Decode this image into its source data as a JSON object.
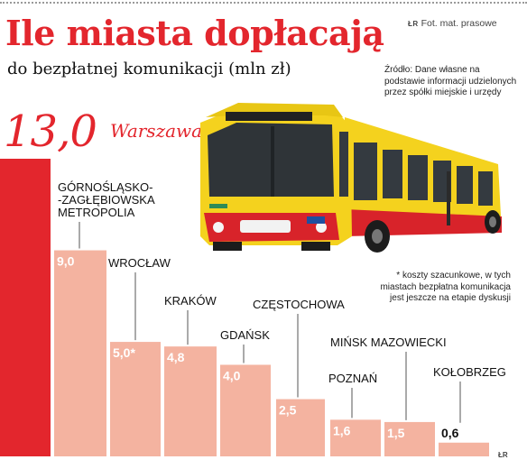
{
  "title": "Ile miasta dopłacają",
  "subtitle": "do bezpłatnej komunikacji (mln zł)",
  "credit": "Fot. mat. prasowe",
  "logo": "ŁR",
  "source": "Źródło: Dane własne na podstawie informacji udzielonych przez spółki miejskie i urzędy",
  "note": "* koszty szacunkowe, w tych miastach bezpłatna komunikacja jest jeszcze na etapie dyskusji",
  "colors": {
    "accent": "#e3262d",
    "bar": "#f4b3a0",
    "bar_highlight": "#e3262d"
  },
  "chart_data": {
    "type": "bar",
    "unit": "mln zł",
    "ylim": [
      0,
      13
    ],
    "categories": [
      "Warszawa",
      "GÓRNOŚLĄSKO--ZAGŁĘBIOWSKA METROPOLIA",
      "WROCŁAW",
      "KRAKÓW",
      "GDAŃSK",
      "CZĘSTOCHOWA",
      "POZNAŃ",
      "MIŃSK MAZOWIECKI",
      "KOŁOBRZEG"
    ],
    "category_lines": [
      [
        "Warszawa"
      ],
      [
        "GÓRNOŚLĄSKO-",
        "-ZAGŁĘBIOWSKA",
        "METROPOLIA"
      ],
      [
        "WROCŁAW"
      ],
      [
        "KRAKÓW"
      ],
      [
        "GDAŃSK"
      ],
      [
        "CZĘSTOCHOWA"
      ],
      [
        "POZNAŃ"
      ],
      [
        "MIŃSK MAZOWIECKI"
      ],
      [
        "KOŁOBRZEG"
      ]
    ],
    "values": [
      13.0,
      9.0,
      5.0,
      4.8,
      4.0,
      2.5,
      1.6,
      1.5,
      0.6
    ],
    "value_labels": [
      "13,0",
      "9,0",
      "5,0*",
      "4,8",
      "4,0",
      "2,5",
      "1,6",
      "1,5",
      "0,6"
    ],
    "estimated": [
      false,
      false,
      true,
      false,
      false,
      false,
      false,
      false,
      false
    ],
    "highlighted": [
      true,
      false,
      false,
      false,
      false,
      false,
      false,
      false,
      false
    ],
    "legend": "none",
    "grid": false
  }
}
